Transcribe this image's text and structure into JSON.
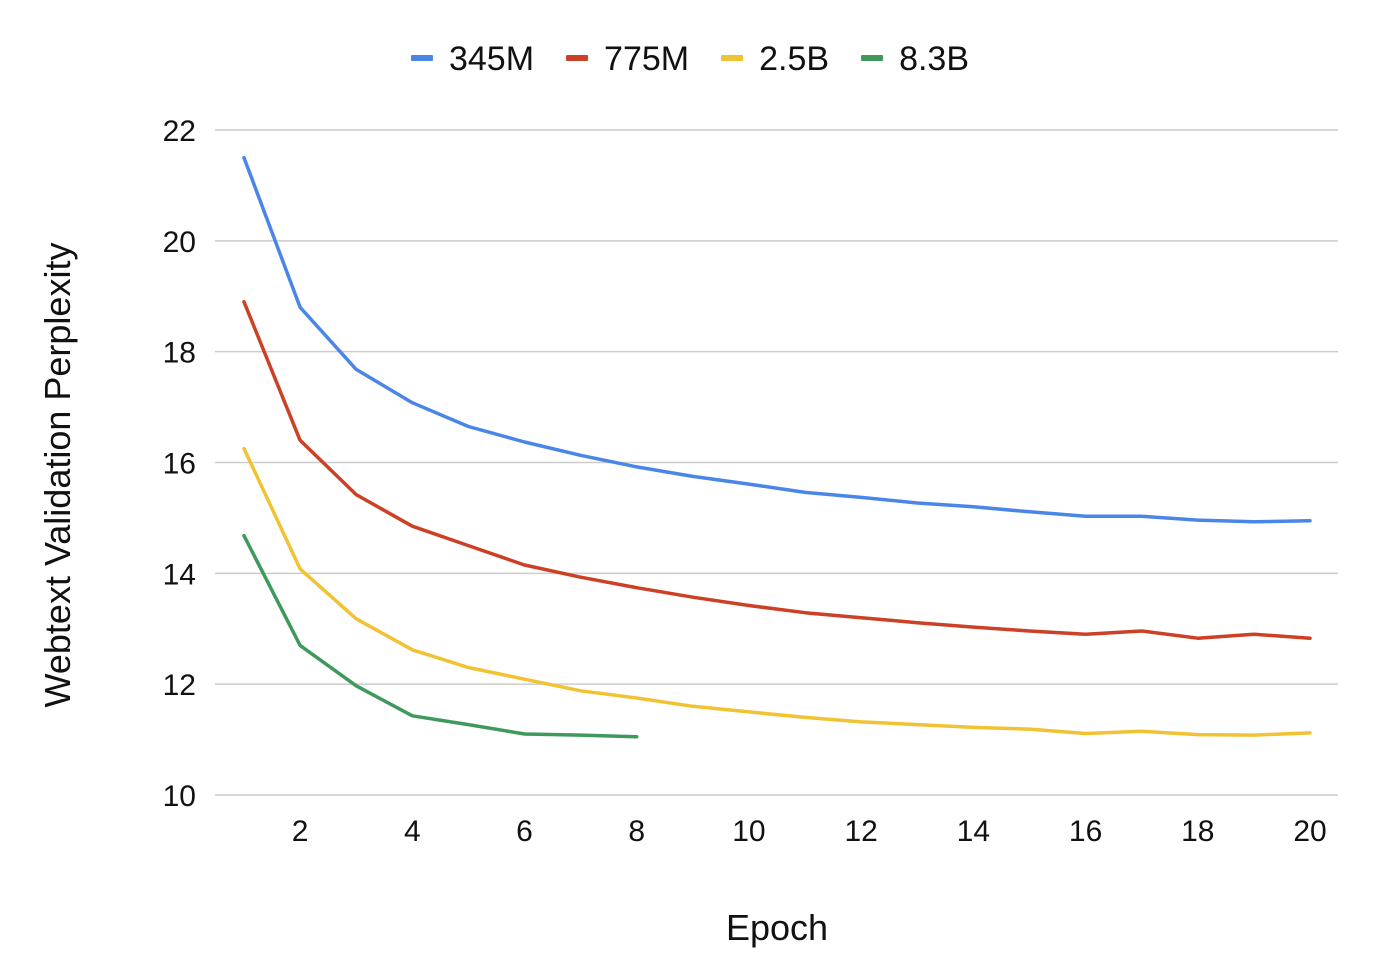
{
  "chart_data": {
    "type": "line",
    "xlabel": "Epoch",
    "ylabel": "Webtext Validation Perplexity",
    "ylim": [
      10,
      22
    ],
    "xlim": [
      1,
      20
    ],
    "yticks": [
      10,
      12,
      14,
      16,
      18,
      20,
      22
    ],
    "xticks": [
      2,
      4,
      6,
      8,
      10,
      12,
      14,
      16,
      18,
      20
    ],
    "grid": true,
    "legend_position": "top",
    "series": [
      {
        "name": "345M",
        "color": "#4a86e8",
        "x": [
          1,
          2,
          3,
          4,
          5,
          6,
          7,
          8,
          9,
          10,
          11,
          12,
          13,
          14,
          15,
          16,
          17,
          18,
          19,
          20
        ],
        "values": [
          21.5,
          18.8,
          17.68,
          17.08,
          16.65,
          16.37,
          16.13,
          15.92,
          15.75,
          15.61,
          15.46,
          15.37,
          15.27,
          15.2,
          15.11,
          15.03,
          15.03,
          14.96,
          14.93,
          14.95
        ]
      },
      {
        "name": "775M",
        "color": "#cc4125",
        "x": [
          1,
          2,
          3,
          4,
          5,
          6,
          7,
          8,
          9,
          10,
          11,
          12,
          13,
          14,
          15,
          16,
          17,
          18,
          19,
          20
        ],
        "values": [
          18.9,
          16.4,
          15.42,
          14.85,
          14.5,
          14.15,
          13.93,
          13.74,
          13.57,
          13.42,
          13.29,
          13.2,
          13.11,
          13.03,
          12.96,
          12.9,
          12.96,
          12.83,
          12.9,
          12.83
        ]
      },
      {
        "name": "2.5B",
        "color": "#f1c232",
        "x": [
          1,
          2,
          3,
          4,
          5,
          6,
          7,
          8,
          9,
          10,
          11,
          12,
          13,
          14,
          15,
          16,
          17,
          18,
          19,
          20
        ],
        "values": [
          16.25,
          14.08,
          13.18,
          12.62,
          12.3,
          12.09,
          11.88,
          11.75,
          11.6,
          11.5,
          11.4,
          11.32,
          11.27,
          11.22,
          11.19,
          11.11,
          11.15,
          11.09,
          11.08,
          11.12
        ]
      },
      {
        "name": "8.3B",
        "color": "#3d9a5c",
        "x": [
          1,
          2,
          3,
          4,
          5,
          6,
          7,
          8
        ],
        "values": [
          14.68,
          12.7,
          11.97,
          11.43,
          11.27,
          11.1,
          11.08,
          11.05
        ]
      }
    ]
  }
}
